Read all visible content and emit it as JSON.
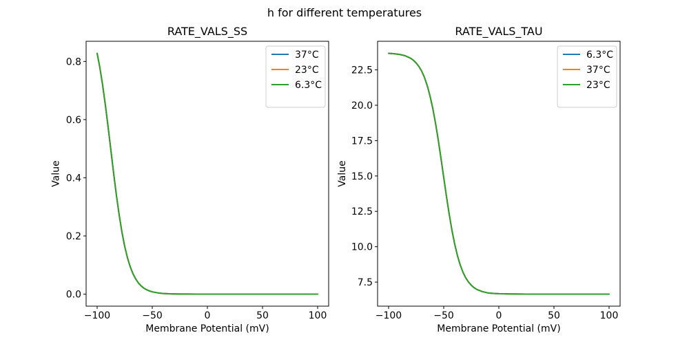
{
  "figure": {
    "title": "h for different temperatures",
    "background": "#ffffff",
    "text_color": "#000000"
  },
  "chart_data": [
    {
      "type": "line",
      "title": "RATE_VALS_SS",
      "xlabel": "Membrane Potential (mV)",
      "ylabel": "Value",
      "xlim": [
        -110,
        110
      ],
      "ylim": [
        -0.0414,
        0.8694
      ],
      "xticks": [
        -100,
        -50,
        0,
        50,
        100
      ],
      "xtick_labels": [
        "−100",
        "−50",
        "0",
        "50",
        "100"
      ],
      "yticks": [
        0.0,
        0.2,
        0.4,
        0.6,
        0.8
      ],
      "ytick_labels": [
        "0.0",
        "0.2",
        "0.4",
        "0.6",
        "0.8"
      ],
      "grid": false,
      "legend_position": "upper right",
      "note": "all three temperature curves overlap exactly; green (last drawn) is visible",
      "x": [
        -100,
        -97.5,
        -95,
        -92.5,
        -90,
        -87.5,
        -85,
        -82.5,
        -80,
        -77.5,
        -75,
        -72.5,
        -70,
        -67.5,
        -65,
        -62.5,
        -60,
        -57.5,
        -55,
        -52.5,
        -50,
        -45,
        -40,
        -35,
        -30,
        -25,
        -20,
        -10,
        0,
        25,
        50,
        75,
        100
      ],
      "series": [
        {
          "name": "37°C",
          "color": "#1f77b4",
          "values": [
            0.828,
            0.778,
            0.718,
            0.649,
            0.573,
            0.494,
            0.414,
            0.339,
            0.272,
            0.213,
            0.164,
            0.125,
            0.094,
            0.07,
            0.052,
            0.038,
            0.028,
            0.02,
            0.015,
            0.011,
            0.0079,
            0.0042,
            0.0022,
            0.0012,
            0.0006,
            0.0003,
            0.0002,
            0.0001,
            0,
            0,
            0,
            0,
            0
          ]
        },
        {
          "name": "23°C",
          "color": "#ff7f0e",
          "values": [
            0.828,
            0.778,
            0.718,
            0.649,
            0.573,
            0.494,
            0.414,
            0.339,
            0.272,
            0.213,
            0.164,
            0.125,
            0.094,
            0.07,
            0.052,
            0.038,
            0.028,
            0.02,
            0.015,
            0.011,
            0.0079,
            0.0042,
            0.0022,
            0.0012,
            0.0006,
            0.0003,
            0.0002,
            0.0001,
            0,
            0,
            0,
            0,
            0
          ]
        },
        {
          "name": "6.3°C",
          "color": "#2ca02c",
          "values": [
            0.828,
            0.778,
            0.718,
            0.649,
            0.573,
            0.494,
            0.414,
            0.339,
            0.272,
            0.213,
            0.164,
            0.125,
            0.094,
            0.07,
            0.052,
            0.038,
            0.028,
            0.02,
            0.015,
            0.011,
            0.0079,
            0.0042,
            0.0022,
            0.0012,
            0.0006,
            0.0003,
            0.0002,
            0.0001,
            0,
            0,
            0,
            0,
            0
          ]
        }
      ]
    },
    {
      "type": "line",
      "title": "RATE_VALS_TAU",
      "xlabel": "Membrane Potential (mV)",
      "ylabel": "Value",
      "xlim": [
        -110,
        110
      ],
      "ylim": [
        5.8,
        24.52
      ],
      "xticks": [
        -100,
        -50,
        0,
        50,
        100
      ],
      "xtick_labels": [
        "−100",
        "−50",
        "0",
        "50",
        "100"
      ],
      "yticks": [
        7.5,
        10.0,
        12.5,
        15.0,
        17.5,
        20.0,
        22.5
      ],
      "ytick_labels": [
        "7.5",
        "10.0",
        "12.5",
        "15.0",
        "17.5",
        "20.0",
        "22.5"
      ],
      "grid": false,
      "legend_position": "upper right",
      "note": "all three temperature curves overlap exactly; green (last drawn) is visible",
      "x": [
        -100,
        -95,
        -90,
        -85,
        -80,
        -77.5,
        -75,
        -72.5,
        -70,
        -67.5,
        -65,
        -62.5,
        -60,
        -57.5,
        -55,
        -52.5,
        -50,
        -47.5,
        -45,
        -42.5,
        -40,
        -37.5,
        -35,
        -32.5,
        -30,
        -27.5,
        -25,
        -22.5,
        -20,
        -15,
        -10,
        -5,
        0,
        10,
        25,
        50,
        75,
        100
      ],
      "series": [
        {
          "name": "6.3°C",
          "color": "#1f77b4",
          "values": [
            23.67,
            23.64,
            23.59,
            23.5,
            23.32,
            23.18,
            22.99,
            22.74,
            22.41,
            21.97,
            21.4,
            20.68,
            19.81,
            18.76,
            17.57,
            16.26,
            14.9,
            13.55,
            12.29,
            11.15,
            10.17,
            9.36,
            8.71,
            8.19,
            7.8,
            7.5,
            7.28,
            7.11,
            6.98,
            6.83,
            6.74,
            6.7,
            6.68,
            6.66,
            6.65,
            6.65,
            6.65,
            6.65
          ]
        },
        {
          "name": "37°C",
          "color": "#ff7f0e",
          "values": [
            23.67,
            23.64,
            23.59,
            23.5,
            23.32,
            23.18,
            22.99,
            22.74,
            22.41,
            21.97,
            21.4,
            20.68,
            19.81,
            18.76,
            17.57,
            16.26,
            14.9,
            13.55,
            12.29,
            11.15,
            10.17,
            9.36,
            8.71,
            8.19,
            7.8,
            7.5,
            7.28,
            7.11,
            6.98,
            6.83,
            6.74,
            6.7,
            6.68,
            6.66,
            6.65,
            6.65,
            6.65,
            6.65
          ]
        },
        {
          "name": "23°C",
          "color": "#2ca02c",
          "values": [
            23.67,
            23.64,
            23.59,
            23.5,
            23.32,
            23.18,
            22.99,
            22.74,
            22.41,
            21.97,
            21.4,
            20.68,
            19.81,
            18.76,
            17.57,
            16.26,
            14.9,
            13.55,
            12.29,
            11.15,
            10.17,
            9.36,
            8.71,
            8.19,
            7.8,
            7.5,
            7.28,
            7.11,
            6.98,
            6.83,
            6.74,
            6.7,
            6.68,
            6.66,
            6.65,
            6.65,
            6.65,
            6.65
          ]
        }
      ]
    }
  ]
}
